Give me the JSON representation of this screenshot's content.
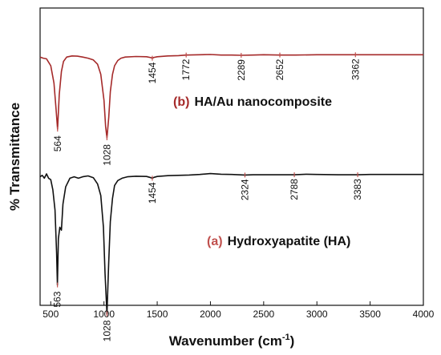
{
  "chart_data": {
    "type": "line",
    "xlabel_main": "Wavenumber (cm",
    "xlabel_sup": "-1",
    "xlabel_close": ")",
    "ylabel": "% Transmittance",
    "xlim": [
      400,
      4000
    ],
    "xticks": [
      500,
      1000,
      1500,
      2000,
      2500,
      3000,
      3500,
      4000
    ],
    "colors": {
      "HA_Au": "#a52a2a",
      "HA": "#111111",
      "marker": "#c0504d"
    },
    "series": [
      {
        "key": "HA_Au",
        "letter": "(b)",
        "name": "HA/Au nanocomposite",
        "x": [
          400,
          430,
          460,
          500,
          530,
          550,
          564,
          580,
          600,
          620,
          650,
          700,
          750,
          800,
          850,
          900,
          940,
          970,
          1000,
          1015,
          1028,
          1045,
          1060,
          1080,
          1100,
          1130,
          1160,
          1200,
          1300,
          1400,
          1440,
          1454,
          1470,
          1500,
          1600,
          1700,
          1772,
          1900,
          2000,
          2100,
          2200,
          2289,
          2400,
          2500,
          2652,
          2800,
          3000,
          3200,
          3362,
          3500,
          3700,
          4000
        ],
        "y": [
          93,
          92.6,
          92.4,
          90,
          84,
          75,
          68,
          80,
          88,
          91.5,
          93,
          93.4,
          93.3,
          93,
          92.6,
          92,
          90.5,
          87,
          78,
          69,
          65,
          72,
          81,
          87,
          90,
          91.8,
          92.6,
          93,
          93.2,
          93.1,
          92.8,
          92.6,
          92.9,
          93.1,
          93.4,
          93.5,
          93.7,
          93.8,
          93.9,
          93.7,
          93.7,
          93.6,
          93.7,
          93.8,
          93.7,
          93.7,
          93.8,
          93.8,
          93.8,
          93.8,
          93.8,
          93.8
        ],
        "peaks": [
          {
            "x": 564,
            "label": "564"
          },
          {
            "x": 1028,
            "label": "1028"
          },
          {
            "x": 1454,
            "label": "1454"
          },
          {
            "x": 1772,
            "label": "1772"
          },
          {
            "x": 2289,
            "label": "2289"
          },
          {
            "x": 2652,
            "label": "2652"
          },
          {
            "x": 3362,
            "label": "3362"
          }
        ]
      },
      {
        "key": "HA",
        "letter": "(a)",
        "name": "Hydroxyapatite (HA)",
        "x": [
          400,
          420,
          440,
          460,
          480,
          500,
          520,
          540,
          555,
          563,
          572,
          585,
          600,
          615,
          640,
          680,
          720,
          760,
          800,
          850,
          900,
          940,
          970,
          995,
          1010,
          1028,
          1045,
          1060,
          1080,
          1100,
          1130,
          1170,
          1220,
          1300,
          1400,
          1440,
          1454,
          1470,
          1500,
          1600,
          1700,
          1800,
          1900,
          2000,
          2100,
          2200,
          2324,
          2400,
          2500,
          2600,
          2788,
          2900,
          3000,
          3200,
          3383,
          3500,
          3700,
          4000
        ],
        "y": [
          51.5,
          52,
          51,
          52.5,
          51,
          50.5,
          47,
          40,
          25,
          14,
          30,
          34,
          33,
          42,
          48,
          51,
          51.5,
          51,
          51.5,
          51.8,
          51.2,
          49,
          45,
          34,
          18,
          4,
          22,
          36,
          44,
          48.5,
          50.2,
          51,
          51.5,
          51.7,
          51.6,
          51.2,
          51,
          51.3,
          51.6,
          51.9,
          52,
          52.1,
          52.3,
          52.6,
          52.4,
          52.3,
          52.1,
          52.2,
          52.2,
          52.2,
          52.2,
          52.4,
          52.3,
          52.2,
          52.2,
          52.3,
          52.3,
          52.3
        ],
        "peaks": [
          {
            "x": 563,
            "label": "563"
          },
          {
            "x": 1028,
            "label": "1028"
          },
          {
            "x": 1454,
            "label": "1454"
          },
          {
            "x": 2324,
            "label": "2324"
          },
          {
            "x": 2788,
            "label": "2788"
          },
          {
            "x": 3383,
            "label": "3383"
          }
        ]
      }
    ]
  }
}
